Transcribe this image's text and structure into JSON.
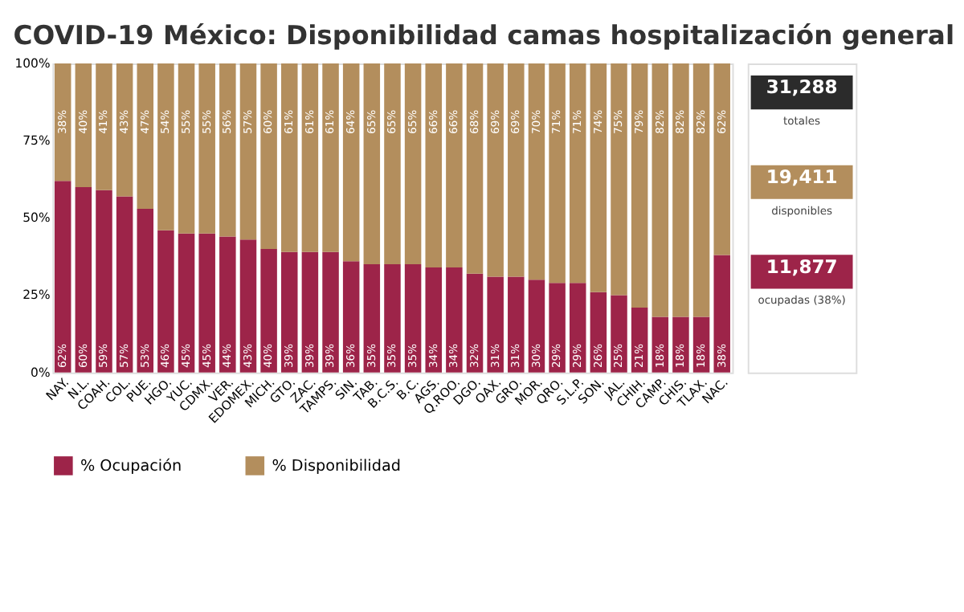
{
  "chart_data": {
    "type": "bar",
    "stacked": true,
    "title": "COVID-19 México: Disponibilidad camas hospitalización general",
    "categories": [
      "NAY.",
      "N.L.",
      "COAH.",
      "COL.",
      "PUE.",
      "HGO.",
      "YUC.",
      "CDMX.",
      "VER.",
      "EDOMEX.",
      "MICH.",
      "GTO.",
      "ZAC.",
      "TAMPS.",
      "SIN.",
      "TAB.",
      "B.C.S.",
      "B.C.",
      "AGS.",
      "Q.ROO.",
      "DGO.",
      "OAX.",
      "GRO.",
      "MOR.",
      "QRO.",
      "S.L.P.",
      "SON.",
      "JAL.",
      "CHIH.",
      "CAMP.",
      "CHIS.",
      "TLAX.",
      "NAC."
    ],
    "series": [
      {
        "name": "% Ocupación",
        "color": "#9d2449",
        "values": [
          62,
          60,
          59,
          57,
          53,
          46,
          45,
          45,
          44,
          43,
          40,
          39,
          39,
          39,
          36,
          35,
          35,
          35,
          34,
          34,
          32,
          31,
          31,
          30,
          29,
          29,
          26,
          25,
          21,
          18,
          18,
          18,
          38
        ],
        "value_labels": [
          "62%",
          "60%",
          "59%",
          "57%",
          "53%",
          "46%",
          "45%",
          "45%",
          "44%",
          "43%",
          "40%",
          "39%",
          "39%",
          "39%",
          "36%",
          "35%",
          "35%",
          "35%",
          "34%",
          "34%",
          "32%",
          "31%",
          "31%",
          "30%",
          "29%",
          "29%",
          "26%",
          "25%",
          "21%",
          "18%",
          "18%",
          "18%",
          "38%"
        ]
      },
      {
        "name": "% Disponibilidad",
        "color": "#b38e5d",
        "values": [
          38,
          40,
          41,
          43,
          47,
          54,
          55,
          55,
          56,
          57,
          60,
          61,
          61,
          61,
          64,
          65,
          65,
          65,
          66,
          66,
          68,
          69,
          69,
          70,
          71,
          71,
          74,
          75,
          79,
          82,
          82,
          82,
          62
        ],
        "value_labels": [
          "38%",
          "40%",
          "41%",
          "43%",
          "47%",
          "54%",
          "55%",
          "55%",
          "56%",
          "57%",
          "60%",
          "61%",
          "61%",
          "61%",
          "64%",
          "65%",
          "65%",
          "65%",
          "66%",
          "66%",
          "68%",
          "69%",
          "69%",
          "70%",
          "71%",
          "71%",
          "74%",
          "75%",
          "79%",
          "82%",
          "82%",
          "82%",
          "62%"
        ]
      }
    ],
    "ylim": [
      0,
      100
    ],
    "yticks": [
      {
        "value": 0,
        "label": "0%"
      },
      {
        "value": 25,
        "label": "25%"
      },
      {
        "value": 50,
        "label": "50%"
      },
      {
        "value": 75,
        "label": "75%"
      },
      {
        "value": 100,
        "label": "100%"
      }
    ],
    "grid": false,
    "legend": "bottom",
    "annotations": [
      "31,288",
      "totales",
      "19,411",
      "disponibles",
      "11,877",
      "ocupadas (38%)"
    ]
  }
}
